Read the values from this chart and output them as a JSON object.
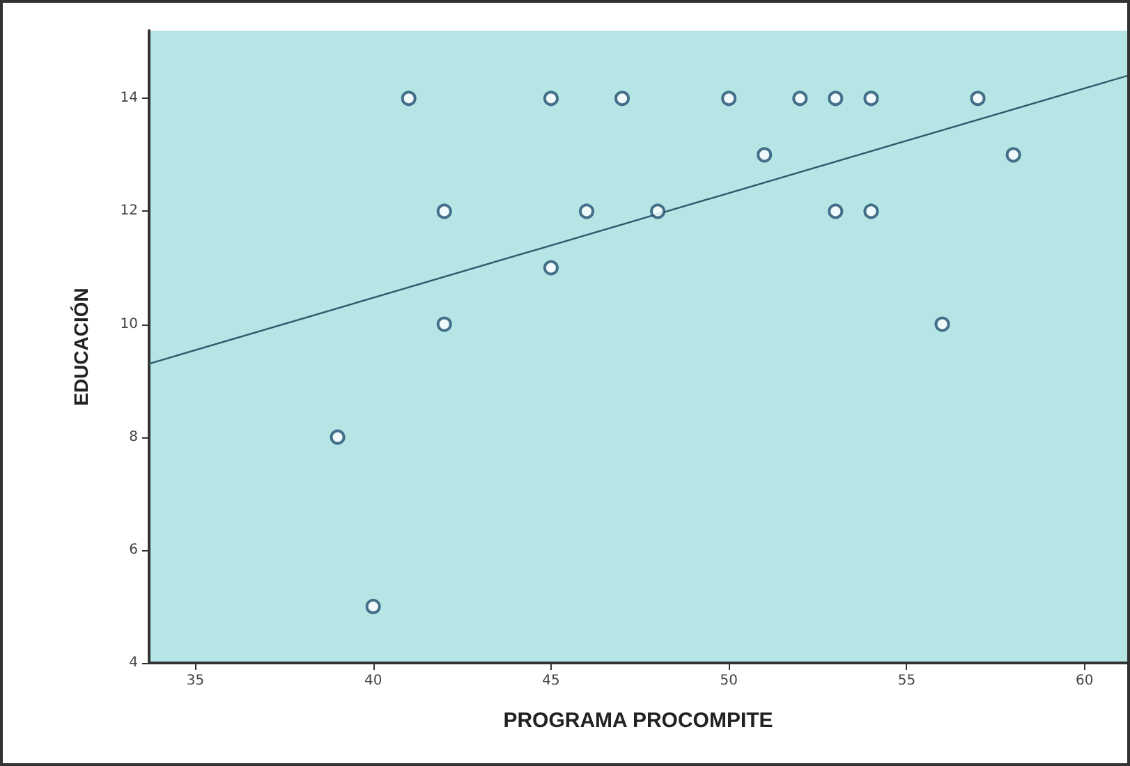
{
  "chart_data": {
    "type": "scatter",
    "xlabel": "PROGRAMA PROCOMPITE",
    "ylabel": "EDUCACIÓN",
    "xlim": [
      33.7,
      61.2
    ],
    "xticks": [
      35,
      40,
      45,
      50,
      55,
      60
    ],
    "ylim": [
      4,
      15.2
    ],
    "yticks": [
      4,
      6,
      8,
      10,
      12,
      14
    ],
    "grid": false,
    "marker": "circle",
    "series": [
      {
        "color": "#1f4f6f",
        "x": [
          41,
          45,
          47,
          50,
          52,
          53,
          54,
          57,
          51,
          58,
          42,
          46,
          48,
          53,
          54,
          45,
          42,
          56,
          39,
          40
        ],
        "values": [
          14,
          14,
          14,
          14,
          14,
          14,
          14,
          14,
          13,
          13,
          12,
          12,
          12,
          12,
          12,
          11,
          10,
          10,
          8,
          5
        ]
      },
      {
        "type": "line",
        "color": "#2c5a6a",
        "x": [
          33.7,
          61.2
        ],
        "values": [
          9.3,
          14.4
        ],
        "marker": "none",
        "line_style": "solid"
      }
    ]
  }
}
